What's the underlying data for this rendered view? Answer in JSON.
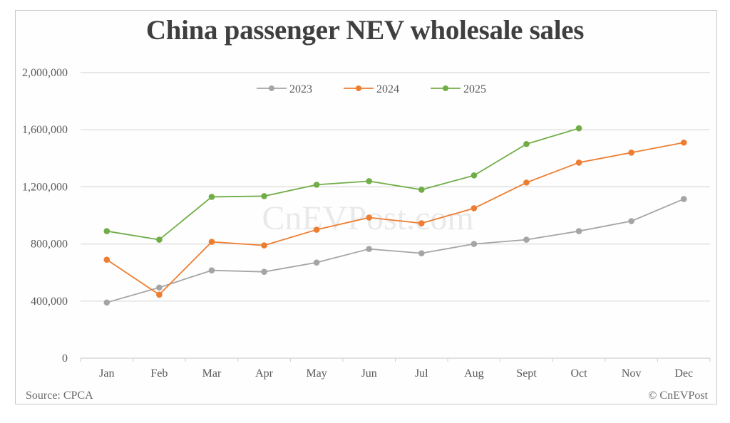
{
  "chart_data": {
    "type": "line",
    "title": "China passenger NEV wholesale sales",
    "xlabel": "",
    "ylabel": "",
    "categories": [
      "Jan",
      "Feb",
      "Mar",
      "Apr",
      "May",
      "Jun",
      "Jul",
      "Aug",
      "Sept",
      "Oct",
      "Nov",
      "Dec"
    ],
    "series": [
      {
        "name": "2023",
        "color": "#a5a5a5",
        "values": [
          390000,
          495000,
          615000,
          605000,
          670000,
          765000,
          735000,
          800000,
          830000,
          890000,
          960000,
          1115000
        ]
      },
      {
        "name": "2024",
        "color": "#ed7d31",
        "values": [
          690000,
          445000,
          815000,
          790000,
          900000,
          985000,
          945000,
          1050000,
          1230000,
          1370000,
          1440000,
          1510000
        ]
      },
      {
        "name": "2025",
        "color": "#70ad47",
        "values": [
          890000,
          830000,
          1130000,
          1135000,
          1215000,
          1240000,
          1180000,
          1280000,
          1500000,
          1610000
        ]
      }
    ],
    "ylim": [
      0,
      2000000
    ],
    "yticks": [
      0,
      400000,
      800000,
      1200000,
      1600000,
      2000000
    ],
    "ytick_labels": [
      "0",
      "400,000",
      "800,000",
      "1,200,000",
      "1,600,000",
      "2,000,000"
    ],
    "grid": true,
    "legend_position": "top-center",
    "annotations": [
      "CnEVPost.com"
    ]
  },
  "header": {
    "title": "China passenger NEV wholesale sales"
  },
  "footer": {
    "source": "Source: CPCA",
    "credit": "© CnEVPost"
  },
  "watermark": "CnEVPost.com"
}
